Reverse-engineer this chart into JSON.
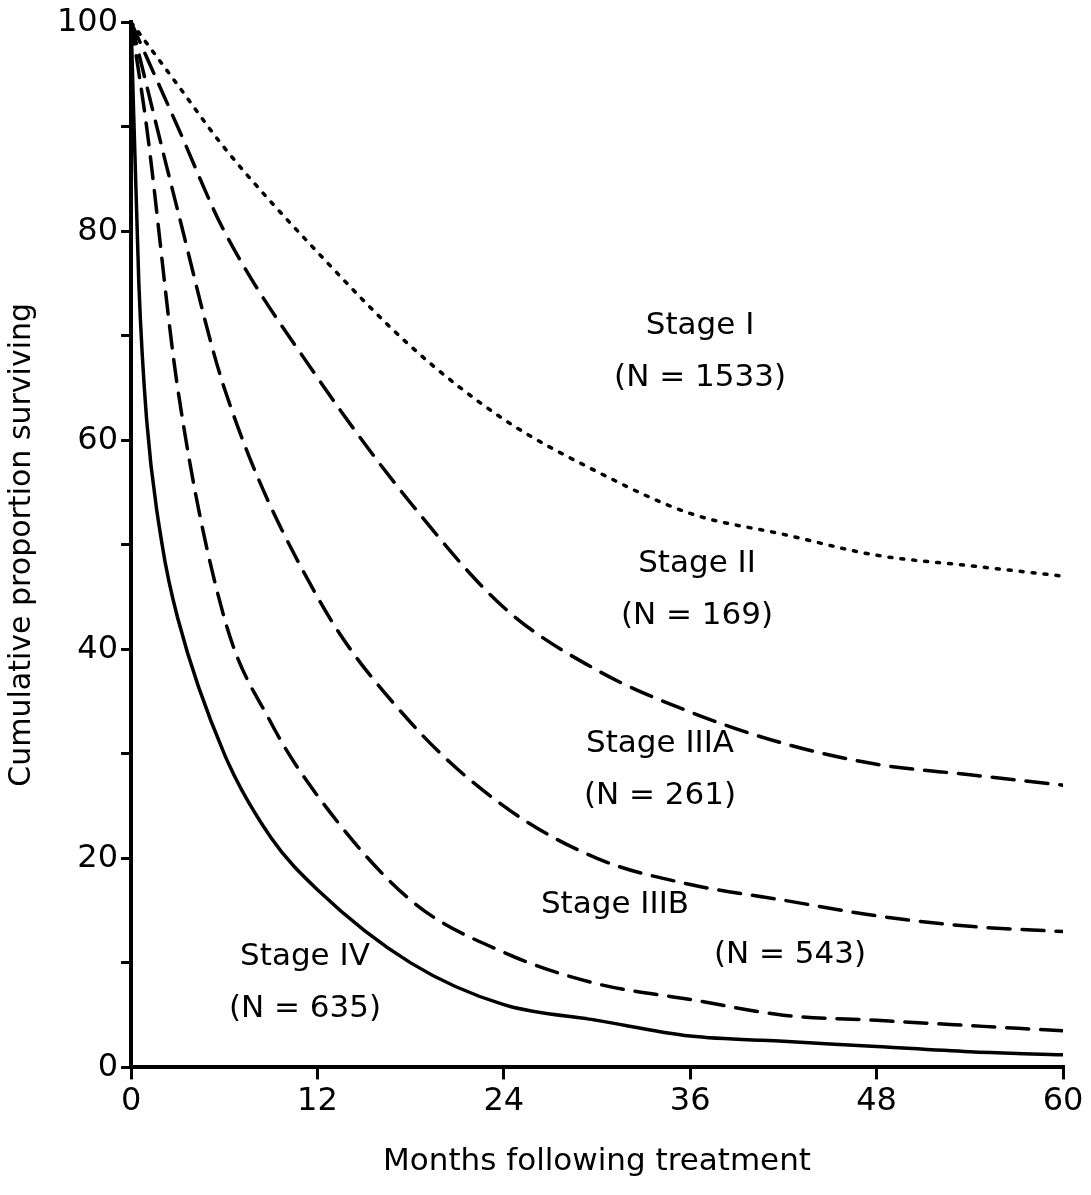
{
  "chart_data": {
    "type": "line",
    "xlabel": "Months following treatment",
    "ylabel": "Cumulative proportion surviving",
    "xlim": [
      0,
      60
    ],
    "xticks": [
      0,
      12,
      24,
      36,
      48,
      60
    ],
    "ylim": [
      0,
      100
    ],
    "yticks": [
      0,
      {
        "value": 10,
        "label": null
      },
      20,
      {
        "value": 30,
        "label": null
      },
      40,
      {
        "value": 50,
        "label": null
      },
      60,
      {
        "value": 70,
        "label": null
      },
      80,
      {
        "value": 90,
        "label": null
      },
      100
    ],
    "grid": false,
    "legend": false,
    "marker": "none",
    "series": [
      {
        "color": "#000000",
        "line_style": "dotted",
        "x": [
          0,
          3,
          6,
          12,
          18,
          24,
          30,
          36,
          42,
          48,
          54,
          60
        ],
        "values": [
          100,
          94,
          88,
          78,
          69,
          62,
          57,
          53,
          51,
          49,
          48,
          47
        ]
      },
      {
        "color": "#000000",
        "line_style": "dashed",
        "x": [
          0,
          3,
          6,
          12,
          18,
          24,
          30,
          36,
          42,
          48,
          54,
          60
        ],
        "values": [
          100,
          90,
          80,
          66,
          54,
          44,
          38,
          34,
          31,
          29,
          28,
          27
        ]
      },
      {
        "color": "#000000",
        "line_style": "dashed",
        "x": [
          0,
          3,
          6,
          12,
          18,
          24,
          30,
          36,
          42,
          48,
          54,
          60
        ],
        "values": [
          100,
          82,
          65,
          45,
          33,
          25,
          20,
          17.5,
          16,
          14.5,
          13.5,
          13
        ]
      },
      {
        "color": "#000000",
        "line_style": "dashed",
        "x": [
          0,
          1,
          3,
          6,
          9,
          12,
          18,
          24,
          30,
          36,
          42,
          48,
          54,
          60
        ],
        "values": [
          100,
          90,
          65,
          43,
          33,
          26,
          16,
          11,
          8,
          6.5,
          5,
          4.5,
          4,
          3.5
        ]
      },
      {
        "color": "#000000",
        "line_style": "solid",
        "x": [
          0,
          0.5,
          1,
          2,
          3,
          6,
          9,
          12,
          18,
          24,
          30,
          36,
          42,
          48,
          54,
          60
        ],
        "values": [
          100,
          75,
          62,
          50,
          43,
          30,
          22,
          17,
          10,
          6,
          4.5,
          3,
          2.5,
          2,
          1.5,
          1.2
        ]
      }
    ],
    "annotations": [
      "Stage I\n(N = 1533)",
      "Stage II\n(N = 169)",
      "Stage IIIA\n(N = 261)",
      "Stage IIIB",
      "(N = 543)",
      "Stage IV\n(N = 635)"
    ]
  }
}
